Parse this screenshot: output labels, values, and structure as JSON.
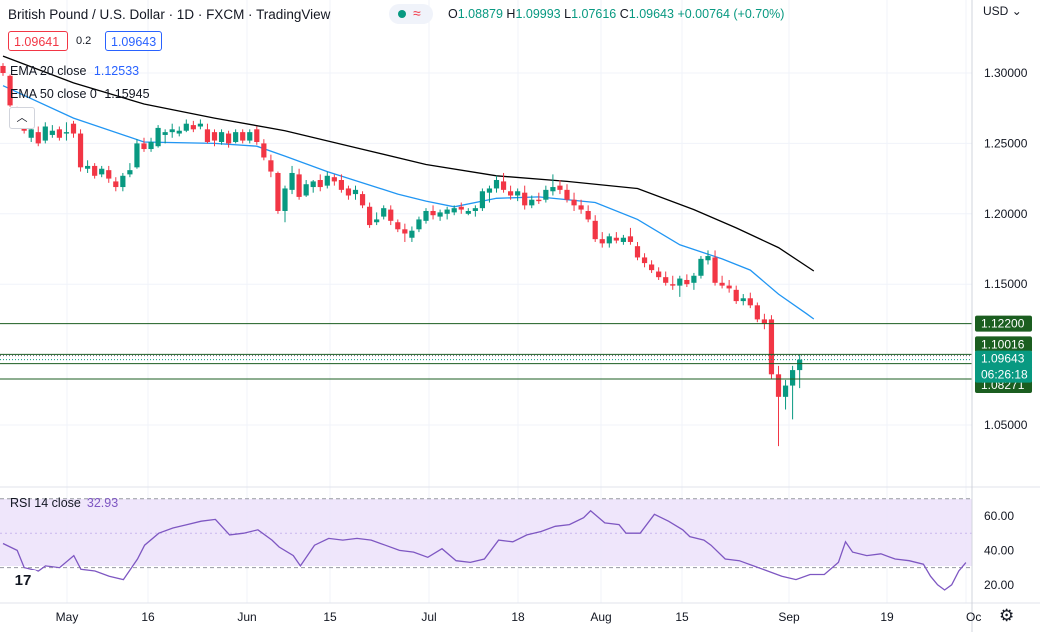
{
  "header": {
    "title": "British Pound / U.S. Dollar · 1D · FXCM · TradingView",
    "ohlc": {
      "o_label": "O",
      "o": "1.08879",
      "h_label": "H",
      "h": "1.09993",
      "l_label": "L",
      "l": "1.07616",
      "c_label": "C",
      "c": "1.09643",
      "change": "+0.00764 (+0.70%)"
    },
    "sell_price": "1.09641",
    "spread": "0.2",
    "buy_price": "1.09643"
  },
  "indicators": {
    "ema20": {
      "label": "EMA 20 close",
      "value": "1.12533",
      "color": "#2196f3"
    },
    "ema50": {
      "label": "EMA 50 close 0",
      "value": "1.15945",
      "color": "#000000"
    }
  },
  "axis": {
    "currency": "USD",
    "y_ticks": [
      "1.30000",
      "1.25000",
      "1.20000",
      "1.15000",
      "1.10000",
      "1.05000"
    ],
    "x_ticks": [
      "May",
      "16",
      "Jun",
      "15",
      "Jul",
      "18",
      "Aug",
      "15",
      "Sep",
      "19",
      "Oc"
    ],
    "rsi_ticks": [
      "60.00",
      "40.00",
      "20.00"
    ]
  },
  "levels": [
    {
      "label": "1.12200",
      "value": 1.122
    },
    {
      "label": "1.10016",
      "value": 1.10016
    },
    {
      "label": "1.09358",
      "value": 1.09358
    },
    {
      "label": "1.08271",
      "value": 1.08271
    }
  ],
  "current": {
    "price": "1.09643",
    "countdown": "06:26:18"
  },
  "rsi": {
    "label": "RSI 14 close",
    "value": "32.93",
    "upper": 70,
    "lower": 30
  },
  "colors": {
    "up": "#089981",
    "down": "#f23645",
    "ema20": "#2196f3",
    "ema50": "#000000",
    "rsi": "#7e57c2",
    "level": "#1b5e20"
  },
  "chart_data": {
    "type": "candlestick",
    "title": "British Pound / U.S. Dollar · 1D · FXCM",
    "ylim": [
      1.025,
      1.345
    ],
    "rsi_ylim": [
      10,
      75
    ],
    "candles": [
      [
        1.305,
        1.307,
        1.298,
        1.3
      ],
      [
        1.298,
        1.299,
        1.276,
        1.277
      ],
      [
        1.272,
        1.276,
        1.266,
        1.269
      ],
      [
        1.264,
        1.266,
        1.257,
        1.259
      ],
      [
        1.254,
        1.262,
        1.251,
        1.26
      ],
      [
        1.258,
        1.262,
        1.248,
        1.25
      ],
      [
        1.252,
        1.265,
        1.25,
        1.262
      ],
      [
        1.256,
        1.263,
        1.254,
        1.259
      ],
      [
        1.26,
        1.262,
        1.252,
        1.254
      ],
      [
        1.257,
        1.265,
        1.252,
        1.258
      ],
      [
        1.264,
        1.266,
        1.254,
        1.257
      ],
      [
        1.257,
        1.26,
        1.23,
        1.233
      ],
      [
        1.232,
        1.238,
        1.229,
        1.234
      ],
      [
        1.234,
        1.236,
        1.225,
        1.227
      ],
      [
        1.228,
        1.234,
        1.226,
        1.232
      ],
      [
        1.231,
        1.234,
        1.222,
        1.225
      ],
      [
        1.223,
        1.226,
        1.216,
        1.219
      ],
      [
        1.219,
        1.229,
        1.216,
        1.227
      ],
      [
        1.228,
        1.236,
        1.226,
        1.231
      ],
      [
        1.233,
        1.253,
        1.232,
        1.25
      ],
      [
        1.25,
        1.254,
        1.244,
        1.246
      ],
      [
        1.246,
        1.254,
        1.244,
        1.251
      ],
      [
        1.248,
        1.263,
        1.247,
        1.261
      ],
      [
        1.256,
        1.26,
        1.25,
        1.258
      ],
      [
        1.258,
        1.264,
        1.254,
        1.26
      ],
      [
        1.257,
        1.262,
        1.255,
        1.259
      ],
      [
        1.259,
        1.267,
        1.258,
        1.264
      ],
      [
        1.263,
        1.266,
        1.258,
        1.26
      ],
      [
        1.262,
        1.267,
        1.26,
        1.264
      ],
      [
        1.26,
        1.264,
        1.25,
        1.251
      ],
      [
        1.258,
        1.26,
        1.248,
        1.252
      ],
      [
        1.251,
        1.26,
        1.249,
        1.258
      ],
      [
        1.257,
        1.259,
        1.247,
        1.25
      ],
      [
        1.251,
        1.26,
        1.25,
        1.258
      ],
      [
        1.258,
        1.26,
        1.25,
        1.252
      ],
      [
        1.252,
        1.26,
        1.25,
        1.258
      ],
      [
        1.26,
        1.262,
        1.249,
        1.251
      ],
      [
        1.25,
        1.253,
        1.238,
        1.24
      ],
      [
        1.238,
        1.242,
        1.226,
        1.23
      ],
      [
        1.229,
        1.23,
        1.2,
        1.202
      ],
      [
        1.202,
        1.22,
        1.194,
        1.218
      ],
      [
        1.217,
        1.234,
        1.214,
        1.229
      ],
      [
        1.228,
        1.232,
        1.21,
        1.212
      ],
      [
        1.213,
        1.224,
        1.212,
        1.221
      ],
      [
        1.219,
        1.224,
        1.215,
        1.223
      ],
      [
        1.224,
        1.228,
        1.216,
        1.219
      ],
      [
        1.22,
        1.23,
        1.218,
        1.227
      ],
      [
        1.226,
        1.228,
        1.22,
        1.223
      ],
      [
        1.224,
        1.228,
        1.215,
        1.217
      ],
      [
        1.218,
        1.22,
        1.21,
        1.213
      ],
      [
        1.214,
        1.22,
        1.21,
        1.217
      ],
      [
        1.214,
        1.216,
        1.204,
        1.206
      ],
      [
        1.205,
        1.208,
        1.19,
        1.192
      ],
      [
        1.194,
        1.201,
        1.192,
        1.196
      ],
      [
        1.198,
        1.206,
        1.196,
        1.204
      ],
      [
        1.203,
        1.206,
        1.192,
        1.195
      ],
      [
        1.194,
        1.196,
        1.187,
        1.189
      ],
      [
        1.189,
        1.193,
        1.18,
        1.186
      ],
      [
        1.183,
        1.191,
        1.18,
        1.188
      ],
      [
        1.189,
        1.198,
        1.187,
        1.196
      ],
      [
        1.195,
        1.204,
        1.193,
        1.202
      ],
      [
        1.202,
        1.206,
        1.196,
        1.199
      ],
      [
        1.198,
        1.203,
        1.195,
        1.201
      ],
      [
        1.2,
        1.205,
        1.196,
        1.203
      ],
      [
        1.201,
        1.206,
        1.199,
        1.204
      ],
      [
        1.205,
        1.208,
        1.2,
        1.203
      ],
      [
        1.2,
        1.204,
        1.199,
        1.202
      ],
      [
        1.202,
        1.206,
        1.198,
        1.204
      ],
      [
        1.204,
        1.218,
        1.202,
        1.216
      ],
      [
        1.215,
        1.22,
        1.208,
        1.218
      ],
      [
        1.218,
        1.227,
        1.215,
        1.224
      ],
      [
        1.223,
        1.229,
        1.215,
        1.217
      ],
      [
        1.216,
        1.22,
        1.21,
        1.213
      ],
      [
        1.213,
        1.218,
        1.209,
        1.216
      ],
      [
        1.215,
        1.22,
        1.203,
        1.206
      ],
      [
        1.206,
        1.213,
        1.204,
        1.21
      ],
      [
        1.21,
        1.215,
        1.207,
        1.209
      ],
      [
        1.21,
        1.22,
        1.208,
        1.217
      ],
      [
        1.216,
        1.228,
        1.213,
        1.219
      ],
      [
        1.22,
        1.224,
        1.214,
        1.217
      ],
      [
        1.217,
        1.221,
        1.208,
        1.21
      ],
      [
        1.21,
        1.215,
        1.202,
        1.206
      ],
      [
        1.206,
        1.21,
        1.2,
        1.203
      ],
      [
        1.202,
        1.206,
        1.194,
        1.196
      ],
      [
        1.195,
        1.199,
        1.18,
        1.182
      ],
      [
        1.182,
        1.187,
        1.176,
        1.179
      ],
      [
        1.179,
        1.186,
        1.176,
        1.184
      ],
      [
        1.183,
        1.187,
        1.179,
        1.181
      ],
      [
        1.18,
        1.185,
        1.178,
        1.183
      ],
      [
        1.184,
        1.19,
        1.178,
        1.18
      ],
      [
        1.177,
        1.18,
        1.167,
        1.169
      ],
      [
        1.169,
        1.172,
        1.162,
        1.165
      ],
      [
        1.164,
        1.167,
        1.158,
        1.16
      ],
      [
        1.159,
        1.162,
        1.153,
        1.155
      ],
      [
        1.155,
        1.159,
        1.149,
        1.151
      ],
      [
        1.15,
        1.156,
        1.146,
        1.149
      ],
      [
        1.149,
        1.156,
        1.141,
        1.154
      ],
      [
        1.153,
        1.157,
        1.148,
        1.15
      ],
      [
        1.151,
        1.158,
        1.146,
        1.156
      ],
      [
        1.156,
        1.17,
        1.154,
        1.168
      ],
      [
        1.167,
        1.174,
        1.164,
        1.17
      ],
      [
        1.169,
        1.174,
        1.149,
        1.151
      ],
      [
        1.151,
        1.156,
        1.147,
        1.149
      ],
      [
        1.149,
        1.153,
        1.144,
        1.147
      ],
      [
        1.146,
        1.149,
        1.136,
        1.138
      ],
      [
        1.138,
        1.143,
        1.135,
        1.14
      ],
      [
        1.14,
        1.144,
        1.133,
        1.135
      ],
      [
        1.135,
        1.137,
        1.123,
        1.125
      ],
      [
        1.125,
        1.129,
        1.118,
        1.122
      ],
      [
        1.125,
        1.128,
        1.083,
        1.086
      ],
      [
        1.086,
        1.092,
        1.035,
        1.07
      ],
      [
        1.07,
        1.082,
        1.061,
        1.078
      ],
      [
        1.078,
        1.092,
        1.054,
        1.089
      ],
      [
        1.089,
        1.0999,
        1.0762,
        1.0964
      ]
    ],
    "ema20": [
      [
        0,
        1.291
      ],
      [
        10,
        1.268
      ],
      [
        20,
        1.251
      ],
      [
        30,
        1.25
      ],
      [
        36,
        1.248
      ],
      [
        40,
        1.241
      ],
      [
        46,
        1.23
      ],
      [
        56,
        1.214
      ],
      [
        60,
        1.209
      ],
      [
        64,
        1.205
      ],
      [
        70,
        1.211
      ],
      [
        76,
        1.212
      ],
      [
        84,
        1.208
      ],
      [
        90,
        1.196
      ],
      [
        96,
        1.178
      ],
      [
        102,
        1.168
      ],
      [
        106,
        1.16
      ],
      [
        110,
        1.143
      ],
      [
        114,
        1.129
      ],
      [
        115,
        1.1253
      ]
    ],
    "ema50": [
      [
        0,
        1.312
      ],
      [
        10,
        1.293
      ],
      [
        20,
        1.278
      ],
      [
        30,
        1.268
      ],
      [
        40,
        1.259
      ],
      [
        50,
        1.247
      ],
      [
        60,
        1.235
      ],
      [
        70,
        1.227
      ],
      [
        80,
        1.223
      ],
      [
        90,
        1.218
      ],
      [
        98,
        1.203
      ],
      [
        104,
        1.19
      ],
      [
        110,
        1.176
      ],
      [
        115,
        1.1594
      ]
    ],
    "rsi": [
      [
        0,
        44
      ],
      [
        2,
        40
      ],
      [
        3,
        30
      ],
      [
        5,
        28
      ],
      [
        6,
        31
      ],
      [
        8,
        30
      ],
      [
        10,
        37
      ],
      [
        11,
        29
      ],
      [
        13,
        28
      ],
      [
        15,
        25
      ],
      [
        17,
        23
      ],
      [
        19,
        35
      ],
      [
        20,
        43
      ],
      [
        22,
        50
      ],
      [
        24,
        53
      ],
      [
        26,
        55
      ],
      [
        28,
        57
      ],
      [
        30,
        58
      ],
      [
        32,
        49
      ],
      [
        34,
        50
      ],
      [
        36,
        52
      ],
      [
        38,
        46
      ],
      [
        39,
        42
      ],
      [
        41,
        37
      ],
      [
        42,
        31
      ],
      [
        44,
        43
      ],
      [
        46,
        47
      ],
      [
        48,
        46
      ],
      [
        50,
        47
      ],
      [
        52,
        46
      ],
      [
        54,
        43
      ],
      [
        56,
        40
      ],
      [
        58,
        39
      ],
      [
        60,
        36
      ],
      [
        62,
        41
      ],
      [
        64,
        34
      ],
      [
        66,
        33
      ],
      [
        68,
        35
      ],
      [
        70,
        46
      ],
      [
        72,
        45
      ],
      [
        74,
        49
      ],
      [
        76,
        51
      ],
      [
        78,
        54
      ],
      [
        80,
        55
      ],
      [
        82,
        59
      ],
      [
        83,
        63
      ],
      [
        85,
        56
      ],
      [
        87,
        55
      ],
      [
        88,
        50
      ],
      [
        90,
        50
      ],
      [
        92,
        61
      ],
      [
        94,
        57
      ],
      [
        96,
        52
      ],
      [
        97,
        48
      ],
      [
        99,
        46
      ],
      [
        100,
        43
      ],
      [
        102,
        35
      ],
      [
        104,
        34
      ],
      [
        106,
        31
      ],
      [
        108,
        28
      ],
      [
        110,
        25
      ],
      [
        112,
        23
      ],
      [
        114,
        26
      ],
      [
        116,
        26
      ],
      [
        118,
        33
      ],
      [
        119,
        45
      ],
      [
        120,
        39
      ],
      [
        122,
        37
      ],
      [
        124,
        38
      ],
      [
        126,
        35
      ],
      [
        128,
        34
      ],
      [
        130,
        32
      ],
      [
        131,
        25
      ],
      [
        132,
        20
      ],
      [
        133,
        17
      ],
      [
        134,
        20
      ],
      [
        135,
        28
      ],
      [
        136,
        32.93
      ]
    ]
  }
}
